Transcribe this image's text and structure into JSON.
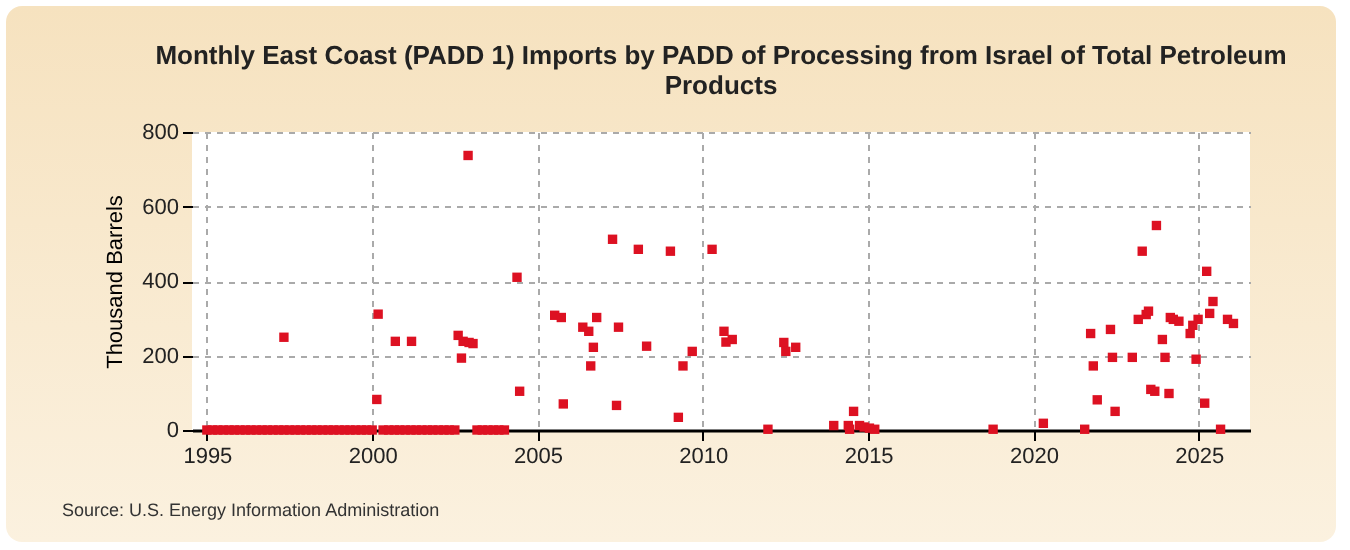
{
  "chart_data": {
    "type": "scatter",
    "title": "Monthly East Coast (PADD 1) Imports by PADD of Processing from Israel of Total Petroleum Products",
    "ylabel": "Thousand Barrels",
    "annotations": [
      "Source: U.S. Energy Information Administration"
    ],
    "marker": "square",
    "grid": true,
    "xlim": [
      1994.55,
      2026.55
    ],
    "xticks": [
      1995,
      2000,
      2005,
      2010,
      2015,
      2020,
      2025
    ],
    "ylim": [
      0,
      800
    ],
    "yticks": [
      0,
      200,
      400,
      600,
      800
    ],
    "series": [
      {
        "color": "#dd1122",
        "x": [
          1995.0,
          1995.17,
          1995.33,
          1995.5,
          1995.67,
          1995.83,
          1996.0,
          1996.17,
          1996.33,
          1996.5,
          1996.67,
          1996.83,
          1997.0,
          1997.17,
          1997.33,
          1997.5,
          1997.67,
          1997.83,
          1998.0,
          1998.17,
          1998.33,
          1998.5,
          1998.67,
          1998.83,
          1999.0,
          1999.17,
          1999.33,
          1999.5,
          1999.67,
          1999.83,
          2000.0,
          2000.33,
          2000.5,
          2000.83,
          2001.0,
          2001.33,
          2000.67,
          2001.17,
          2001.5,
          2001.67,
          2001.83,
          2002.0,
          2002.17,
          2002.33,
          2002.5,
          2003.17,
          2003.33,
          2003.5,
          2003.67,
          2003.83,
          2004.0,
          1997.33,
          2000.14,
          2000.18,
          2000.7,
          2001.19,
          2002.6,
          2002.7,
          2002.75,
          2002.9,
          2002.93,
          2003.05,
          2004.38,
          2004.46,
          2005.52,
          2005.72,
          2005.78,
          2006.37,
          2006.55,
          2006.79,
          2006.69,
          2006.61,
          2007.27,
          2007.45,
          2007.39,
          2008.05,
          2008.3,
          2009.02,
          2009.26,
          2009.4,
          2009.68,
          2010.28,
          2010.64,
          2010.7,
          2010.89,
          2011.97,
          2012.45,
          2012.51,
          2012.81,
          2013.96,
          2014.4,
          2014.56,
          2014.44,
          2014.74,
          2014.88,
          2015.04,
          2015.2,
          2018.78,
          2020.3,
          2021.55,
          2021.73,
          2021.81,
          2021.93,
          2022.33,
          2022.47,
          2022.39,
          2022.99,
          2023.17,
          2023.29,
          2023.41,
          2023.48,
          2023.72,
          2023.55,
          2023.67,
          2023.9,
          2023.98,
          2024.1,
          2024.14,
          2024.23,
          2024.4,
          2024.74,
          2024.82,
          2024.92,
          2024.98,
          2025.18,
          2025.24,
          2025.33,
          2025.43,
          2025.66,
          2025.87,
          2026.05
        ],
        "values": [
          0,
          0,
          0,
          0,
          0,
          0,
          0,
          0,
          0,
          0,
          0,
          0,
          0,
          0,
          0,
          0,
          0,
          0,
          0,
          0,
          0,
          0,
          0,
          0,
          0,
          0,
          0,
          0,
          0,
          0,
          0,
          0,
          0,
          0,
          0,
          0,
          0,
          0,
          0,
          0,
          0,
          0,
          0,
          0,
          0,
          0,
          0,
          0,
          0,
          0,
          0,
          249,
          82,
          311,
          238,
          238,
          254,
          193,
          238,
          737,
          235,
          232,
          410,
          104,
          308,
          302,
          70,
          276,
          265,
          302,
          222,
          172,
          512,
          276,
          66,
          485,
          225,
          480,
          34,
          172,
          211,
          485,
          265,
          236,
          243,
          2,
          235,
          211,
          222,
          12,
          12,
          50,
          2,
          12,
          8,
          5,
          2,
          2,
          18,
          2,
          259,
          172,
          81,
          270,
          50,
          195,
          195,
          297,
          480,
          310,
          319,
          549,
          109,
          104,
          243,
          195,
          98,
          302,
          297,
          292,
          259,
          281,
          190,
          297,
          72,
          426,
          313,
          345,
          2,
          297,
          286
        ]
      }
    ]
  }
}
